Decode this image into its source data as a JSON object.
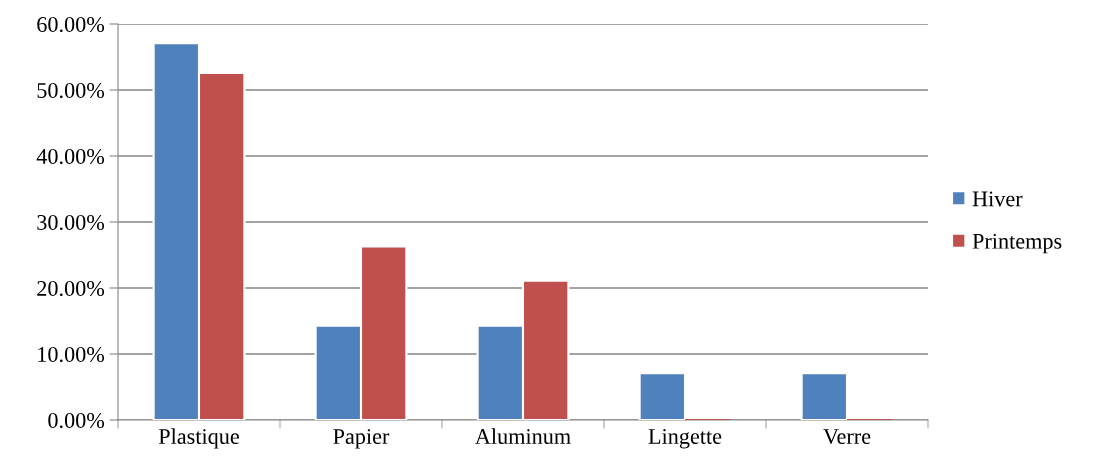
{
  "chart_data": {
    "type": "bar",
    "categories": [
      "Plastique",
      "Papier",
      "Aluminum",
      "Lingette",
      "Verre"
    ],
    "series": [
      {
        "name": "Hiver",
        "color": "#4f81bd",
        "values": [
          57.1,
          14.3,
          14.3,
          7.1,
          7.1
        ]
      },
      {
        "name": "Printemps",
        "color": "#c0504d",
        "values": [
          52.6,
          26.3,
          21.1,
          0,
          0
        ]
      }
    ],
    "ylim": [
      0,
      60
    ],
    "yticks": [
      {
        "value": 0,
        "label": "0.00%"
      },
      {
        "value": 10,
        "label": "10.00%"
      },
      {
        "value": 20,
        "label": "20.00%"
      },
      {
        "value": 30,
        "label": "30.00%"
      },
      {
        "value": 40,
        "label": "40.00%"
      },
      {
        "value": 50,
        "label": "50.00%"
      },
      {
        "value": 60,
        "label": "60.00%"
      }
    ],
    "grid": "y",
    "legend": "right"
  }
}
